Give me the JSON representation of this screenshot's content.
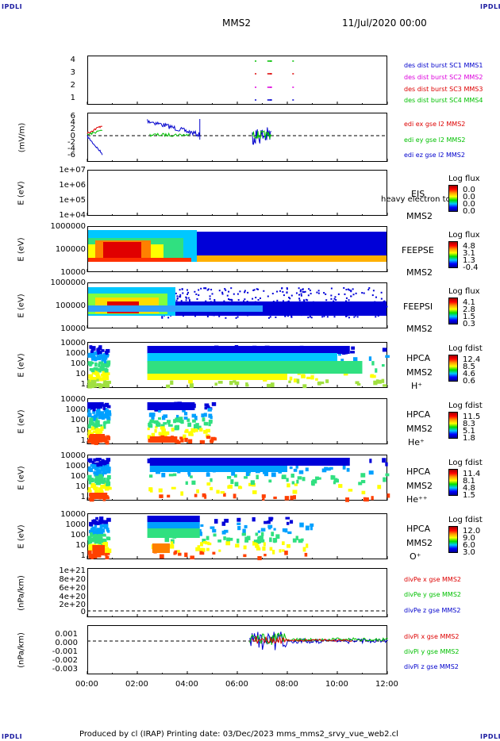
{
  "header": {
    "left_logo": "IPDLI",
    "right_logo": "IPDLI",
    "title": "MMS2",
    "date": "11/Jul/2020 00:00"
  },
  "footer": {
    "left_logo": "IPDLI",
    "right_logo": "IPDLI",
    "text": "Produced by cl (IRAP)   Printing date: 03/Dec/2023   mms_mms2_srvy_vue_web2.cl"
  },
  "x_axis": {
    "ticks": [
      "00:00",
      "02:00",
      "04:00",
      "06:00",
      "08:00",
      "10:00",
      "12:00"
    ]
  },
  "colors": {
    "red": "#dd0000",
    "magenta": "#dd00dd",
    "green": "#00c000",
    "blue": "#0000cc",
    "orange": "#ffa000"
  },
  "chart_data": [
    {
      "type": "scatter",
      "ylabel": "",
      "y_ticks": [
        "4",
        "3",
        "2",
        "1"
      ],
      "legend": [
        {
          "name": "des dist burst SC1 MMS1",
          "color": "#0000cc"
        },
        {
          "name": "des dist burst SC2 MMS2",
          "color": "#dd00dd"
        },
        {
          "name": "des dist burst SC3 MMS3",
          "color": "#dd0000"
        },
        {
          "name": "des dist burst SC4 MMS4",
          "color": "#00c000"
        }
      ],
      "series": [
        {
          "name": "SC1",
          "y": 1,
          "x_hours": [
            6.7,
            7.2,
            7.3,
            8.2
          ]
        },
        {
          "name": "SC2",
          "y": 2,
          "x_hours": [
            6.7,
            7.2,
            7.3,
            8.2
          ]
        },
        {
          "name": "SC3",
          "y": 3,
          "x_hours": [
            6.7,
            7.2,
            7.3,
            8.2
          ]
        },
        {
          "name": "SC4",
          "y": 4,
          "x_hours": [
            6.7,
            7.2,
            7.3,
            8.2
          ]
        }
      ]
    },
    {
      "type": "line",
      "ylabel": "(mV/m)",
      "y_ticks": [
        "6",
        "4",
        "2",
        "0",
        "-2",
        "-4",
        "-6"
      ],
      "ylim": [
        -6,
        6
      ],
      "legend": [
        {
          "name": "edi ex gse l2 MMS2",
          "color": "#dd0000"
        },
        {
          "name": "edi ey gse l2 MMS2",
          "color": "#00c000"
        },
        {
          "name": "edi ez gse l2 MMS2",
          "color": "#0000cc"
        }
      ]
    },
    {
      "type": "heatmap",
      "ylabel": "E (eV)",
      "y_ticks": [
        "1e+07",
        "1e+06",
        "1e+05",
        "1e+04"
      ],
      "right_labels": [
        "EIS",
        "MMS2"
      ],
      "overlay_text": "heavy electron to",
      "colorbar": {
        "title": "Log flux",
        "values": [
          "0.0",
          "0.0",
          "0.0",
          "0.0"
        ]
      }
    },
    {
      "type": "heatmap",
      "ylabel": "E (eV)",
      "y_ticks": [
        "1000000",
        "100000",
        "10000"
      ],
      "right_labels": [
        "FEEPSE",
        "MMS2"
      ],
      "colorbar": {
        "title": "Log flux",
        "values": [
          "4.8",
          "3.1",
          "1.3",
          "-0.4"
        ]
      }
    },
    {
      "type": "heatmap",
      "ylabel": "E (eV)",
      "y_ticks": [
        "1000000",
        "100000",
        "10000"
      ],
      "right_labels": [
        "FEEPSI",
        "MMS2"
      ],
      "colorbar": {
        "title": "Log flux",
        "values": [
          "4.1",
          "2.8",
          "1.5",
          "0.3"
        ]
      }
    },
    {
      "type": "heatmap",
      "ylabel": "E (eV)",
      "y_ticks": [
        "10000",
        "1000",
        "100",
        "10",
        "1"
      ],
      "right_labels": [
        "HPCA",
        "MMS2",
        "H⁺"
      ],
      "colorbar": {
        "title": "Log fdist",
        "values": [
          "12.4",
          "8.5",
          "4.6",
          "0.6"
        ]
      }
    },
    {
      "type": "heatmap",
      "ylabel": "E (eV)",
      "y_ticks": [
        "10000",
        "1000",
        "100",
        "10",
        "1"
      ],
      "right_labels": [
        "HPCA",
        "MMS2",
        "He⁺"
      ],
      "colorbar": {
        "title": "Log fdist",
        "values": [
          "11.5",
          "8.3",
          "5.1",
          "1.8"
        ]
      }
    },
    {
      "type": "heatmap",
      "ylabel": "E (eV)",
      "y_ticks": [
        "10000",
        "1000",
        "100",
        "10",
        "1"
      ],
      "right_labels": [
        "HPCA",
        "MMS2",
        "He⁺⁺"
      ],
      "colorbar": {
        "title": "Log fdist",
        "values": [
          "11.4",
          "8.1",
          "4.8",
          "1.5"
        ]
      }
    },
    {
      "type": "heatmap",
      "ylabel": "E (eV)",
      "y_ticks": [
        "10000",
        "1000",
        "100",
        "10",
        "1"
      ],
      "right_labels": [
        "HPCA",
        "MMS2",
        "O⁺"
      ],
      "colorbar": {
        "title": "Log fdist",
        "values": [
          "12.0",
          "9.0",
          "6.0",
          "3.0"
        ]
      }
    },
    {
      "type": "line",
      "ylabel": "(nPa/km)",
      "y_ticks": [
        "1e+21",
        "8e+20",
        "6e+20",
        "4e+20",
        "2e+20",
        "0"
      ],
      "legend": [
        {
          "name": "divPe x gse MMS2",
          "color": "#dd0000"
        },
        {
          "name": "divPe y gse MMS2",
          "color": "#00c000"
        },
        {
          "name": "divPe z gse MMS2",
          "color": "#0000cc"
        }
      ]
    },
    {
      "type": "line",
      "ylabel": "(nPa/km)",
      "y_ticks": [
        "0.001",
        "0.000",
        "-0.001",
        "-0.002",
        "-0.003"
      ],
      "legend": [
        {
          "name": "divPi x gse MMS2",
          "color": "#dd0000"
        },
        {
          "name": "divPi y gse MMS2",
          "color": "#00c000"
        },
        {
          "name": "divPi z gse MMS2",
          "color": "#0000cc"
        }
      ]
    }
  ]
}
